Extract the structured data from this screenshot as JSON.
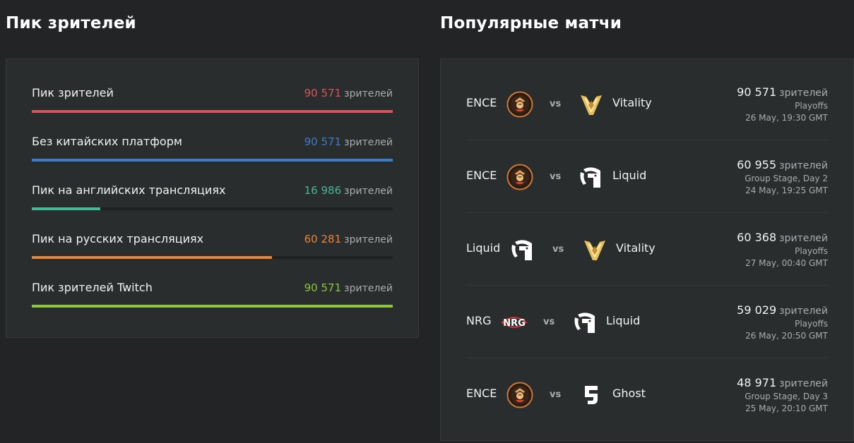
{
  "peak": {
    "title": "Пик зрителей",
    "unit": "зрителей",
    "stats": [
      {
        "label": "Пик зрителей",
        "value": "90 571",
        "color": "#d6555b",
        "fill": 1.0
      },
      {
        "label": "Без китайских платформ",
        "value": "90 571",
        "color": "#3e7cc7",
        "fill": 1.0
      },
      {
        "label": "Пик на английских трансляциях",
        "value": "16 986",
        "color": "#45b896",
        "fill": 0.19
      },
      {
        "label": "Пик на русских трансляциях",
        "value": "60 281",
        "color": "#e8833a",
        "fill": 0.665
      },
      {
        "label": "Пик зрителей Twitch",
        "value": "90 571",
        "color": "#8dc63f",
        "fill": 1.0
      }
    ]
  },
  "matches": {
    "title": "Популярные матчи",
    "unit": "зрителей",
    "vs_label": "vs",
    "items": [
      {
        "team1": "ENCE",
        "logo1": "ence-logo-icon",
        "team2": "Vitality",
        "logo2": "vitality-logo-icon",
        "viewers": "90 571",
        "stage": "Playoffs",
        "date": "26 May, 19:30 GMT"
      },
      {
        "team1": "ENCE",
        "logo1": "ence-logo-icon",
        "team2": "Liquid",
        "logo2": "liquid-logo-icon",
        "viewers": "60 955",
        "stage": "Group Stage, Day 2",
        "date": "24 May, 19:25 GMT"
      },
      {
        "team1": "Liquid",
        "logo1": "liquid-logo-icon",
        "team2": "Vitality",
        "logo2": "vitality-logo-icon",
        "viewers": "60 368",
        "stage": "Playoffs",
        "date": "27 May, 00:40 GMT"
      },
      {
        "team1": "NRG",
        "logo1": "nrg-logo-icon",
        "team2": "Liquid",
        "logo2": "liquid-logo-icon",
        "viewers": "59 029",
        "stage": "Playoffs",
        "date": "26 May, 20:50 GMT"
      },
      {
        "team1": "ENCE",
        "logo1": "ence-logo-icon",
        "team2": "Ghost",
        "logo2": "ghost-logo-icon",
        "viewers": "48 971",
        "stage": "Group Stage, Day 3",
        "date": "25 May, 20:10 GMT"
      }
    ]
  }
}
